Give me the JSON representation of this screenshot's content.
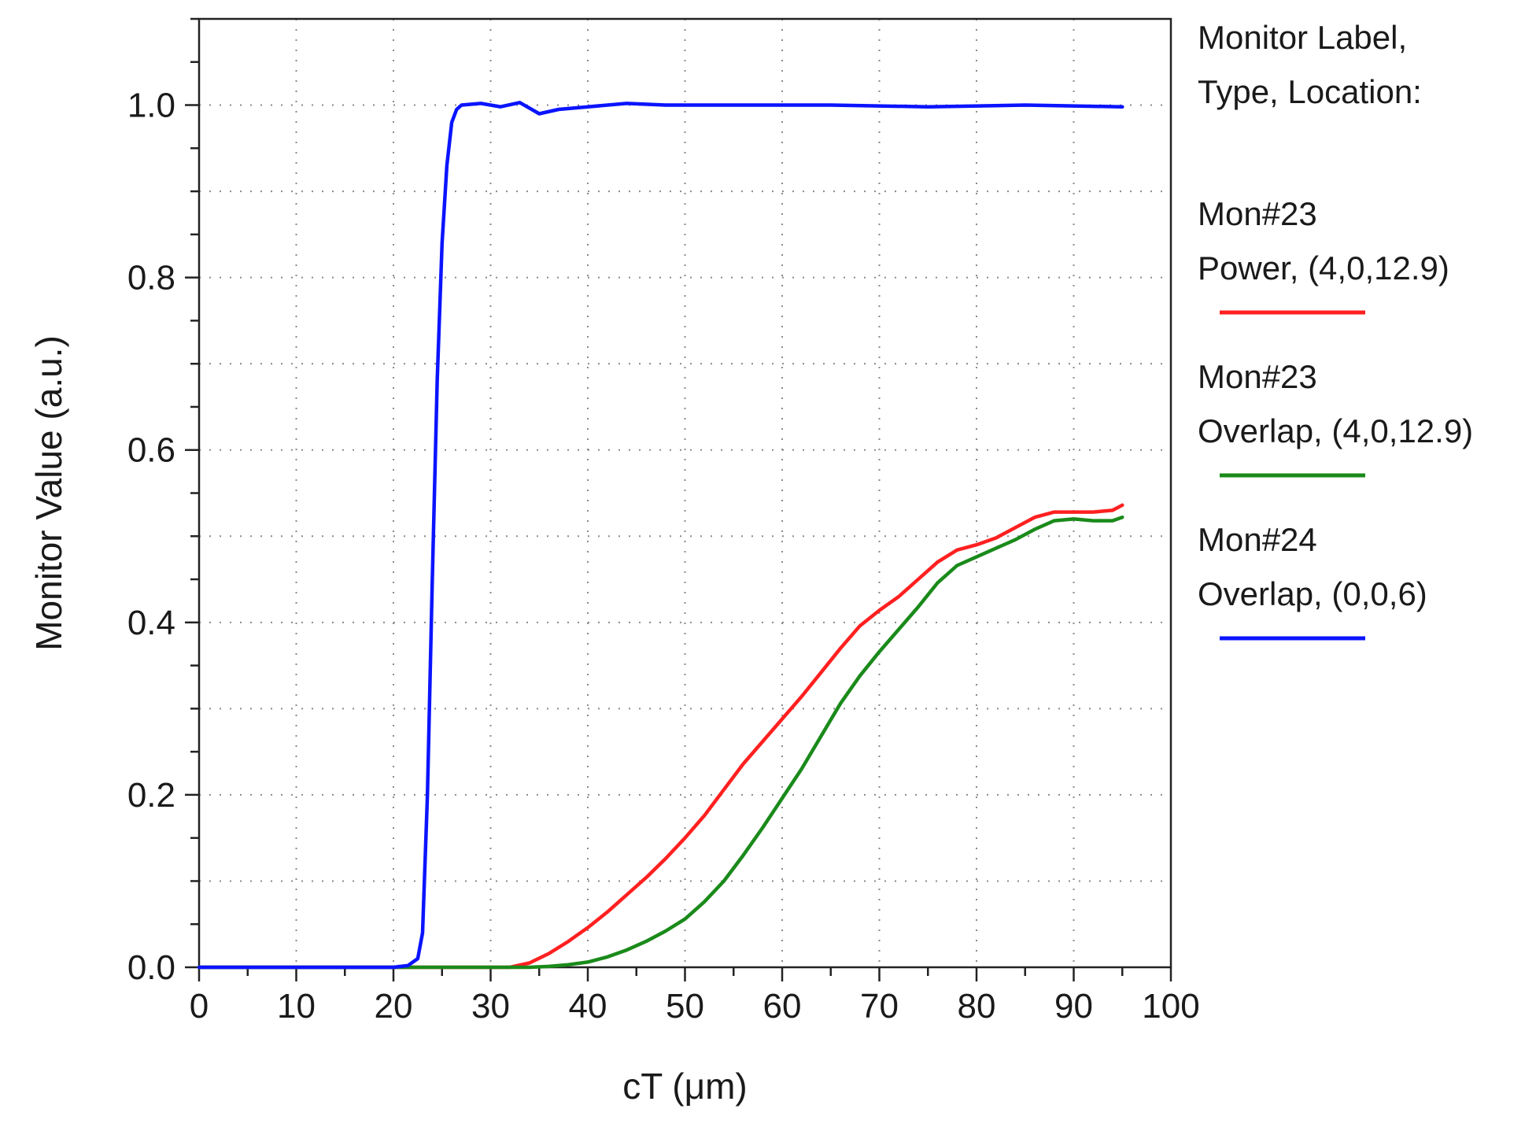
{
  "chart_data": {
    "type": "line",
    "xlabel": "cT (μm)",
    "ylabel": "Monitor Value (a.u.)",
    "xlim": [
      0,
      100
    ],
    "ylim": [
      0,
      1.1
    ],
    "x_ticks": [
      0,
      10,
      20,
      30,
      40,
      50,
      60,
      70,
      80,
      90,
      100
    ],
    "x_tick_labels": [
      "0",
      "10",
      "20",
      "30",
      "40",
      "50",
      "60",
      "70",
      "80",
      "90",
      "100"
    ],
    "y_ticks": [
      0,
      0.2,
      0.4,
      0.6,
      0.8,
      1.0
    ],
    "y_tick_labels": [
      "0.0",
      "0.2",
      "0.4",
      "0.6",
      "0.8",
      "1.0"
    ],
    "grid": true,
    "legend_position": "right",
    "legend_header": [
      "Monitor Label,",
      "Type, Location:"
    ],
    "series": [
      {
        "name": "Mon#23 Power, (4,0,12.9)",
        "legend_lines": [
          "Mon#23",
          "Power, (4,0,12.9)"
        ],
        "color": "#ff2020",
        "x": [
          0,
          32,
          34,
          36,
          38,
          40,
          42,
          44,
          46,
          48,
          50,
          52,
          54,
          56,
          58,
          60,
          62,
          64,
          66,
          68,
          70,
          72,
          74,
          76,
          78,
          80,
          82,
          84,
          86,
          88,
          90,
          92,
          94,
          95
        ],
        "y": [
          0,
          0,
          0.005,
          0.016,
          0.03,
          0.046,
          0.064,
          0.084,
          0.104,
          0.126,
          0.15,
          0.176,
          0.206,
          0.236,
          0.262,
          0.288,
          0.314,
          0.342,
          0.37,
          0.396,
          0.414,
          0.43,
          0.45,
          0.47,
          0.484,
          0.49,
          0.498,
          0.51,
          0.522,
          0.528,
          0.528,
          0.528,
          0.53,
          0.536
        ]
      },
      {
        "name": "Mon#23 Overlap, (4,0,12.9)",
        "legend_lines": [
          "Mon#23",
          "Overlap, (4,0,12.9)"
        ],
        "color": "#1a8a1a",
        "x": [
          0,
          34,
          36,
          38,
          40,
          42,
          44,
          46,
          48,
          50,
          52,
          54,
          56,
          58,
          60,
          62,
          64,
          66,
          68,
          70,
          72,
          74,
          76,
          78,
          80,
          82,
          84,
          86,
          88,
          90,
          92,
          94,
          95
        ],
        "y": [
          0,
          0,
          0.001,
          0.003,
          0.006,
          0.012,
          0.02,
          0.03,
          0.042,
          0.056,
          0.076,
          0.1,
          0.13,
          0.162,
          0.196,
          0.23,
          0.268,
          0.306,
          0.338,
          0.366,
          0.392,
          0.418,
          0.446,
          0.466,
          0.476,
          0.486,
          0.496,
          0.508,
          0.518,
          0.52,
          0.518,
          0.518,
          0.522
        ]
      },
      {
        "name": "Mon#24 Overlap, (0,0,6)",
        "legend_lines": [
          "Mon#24",
          "Overlap, (0,0,6)"
        ],
        "color": "#0a14ff",
        "x": [
          0,
          20,
          21.5,
          22.5,
          23,
          23.5,
          24,
          24.5,
          25,
          25.5,
          26,
          26.5,
          27,
          29,
          31,
          33,
          35,
          37,
          40,
          44,
          48,
          55,
          65,
          75,
          85,
          95
        ],
        "y": [
          0,
          0,
          0.002,
          0.01,
          0.04,
          0.2,
          0.45,
          0.68,
          0.84,
          0.93,
          0.98,
          0.995,
          1.0,
          1.002,
          0.998,
          1.003,
          0.99,
          0.995,
          0.998,
          1.002,
          1.0,
          1.0,
          1.0,
          0.998,
          1.0,
          0.998
        ]
      }
    ]
  }
}
